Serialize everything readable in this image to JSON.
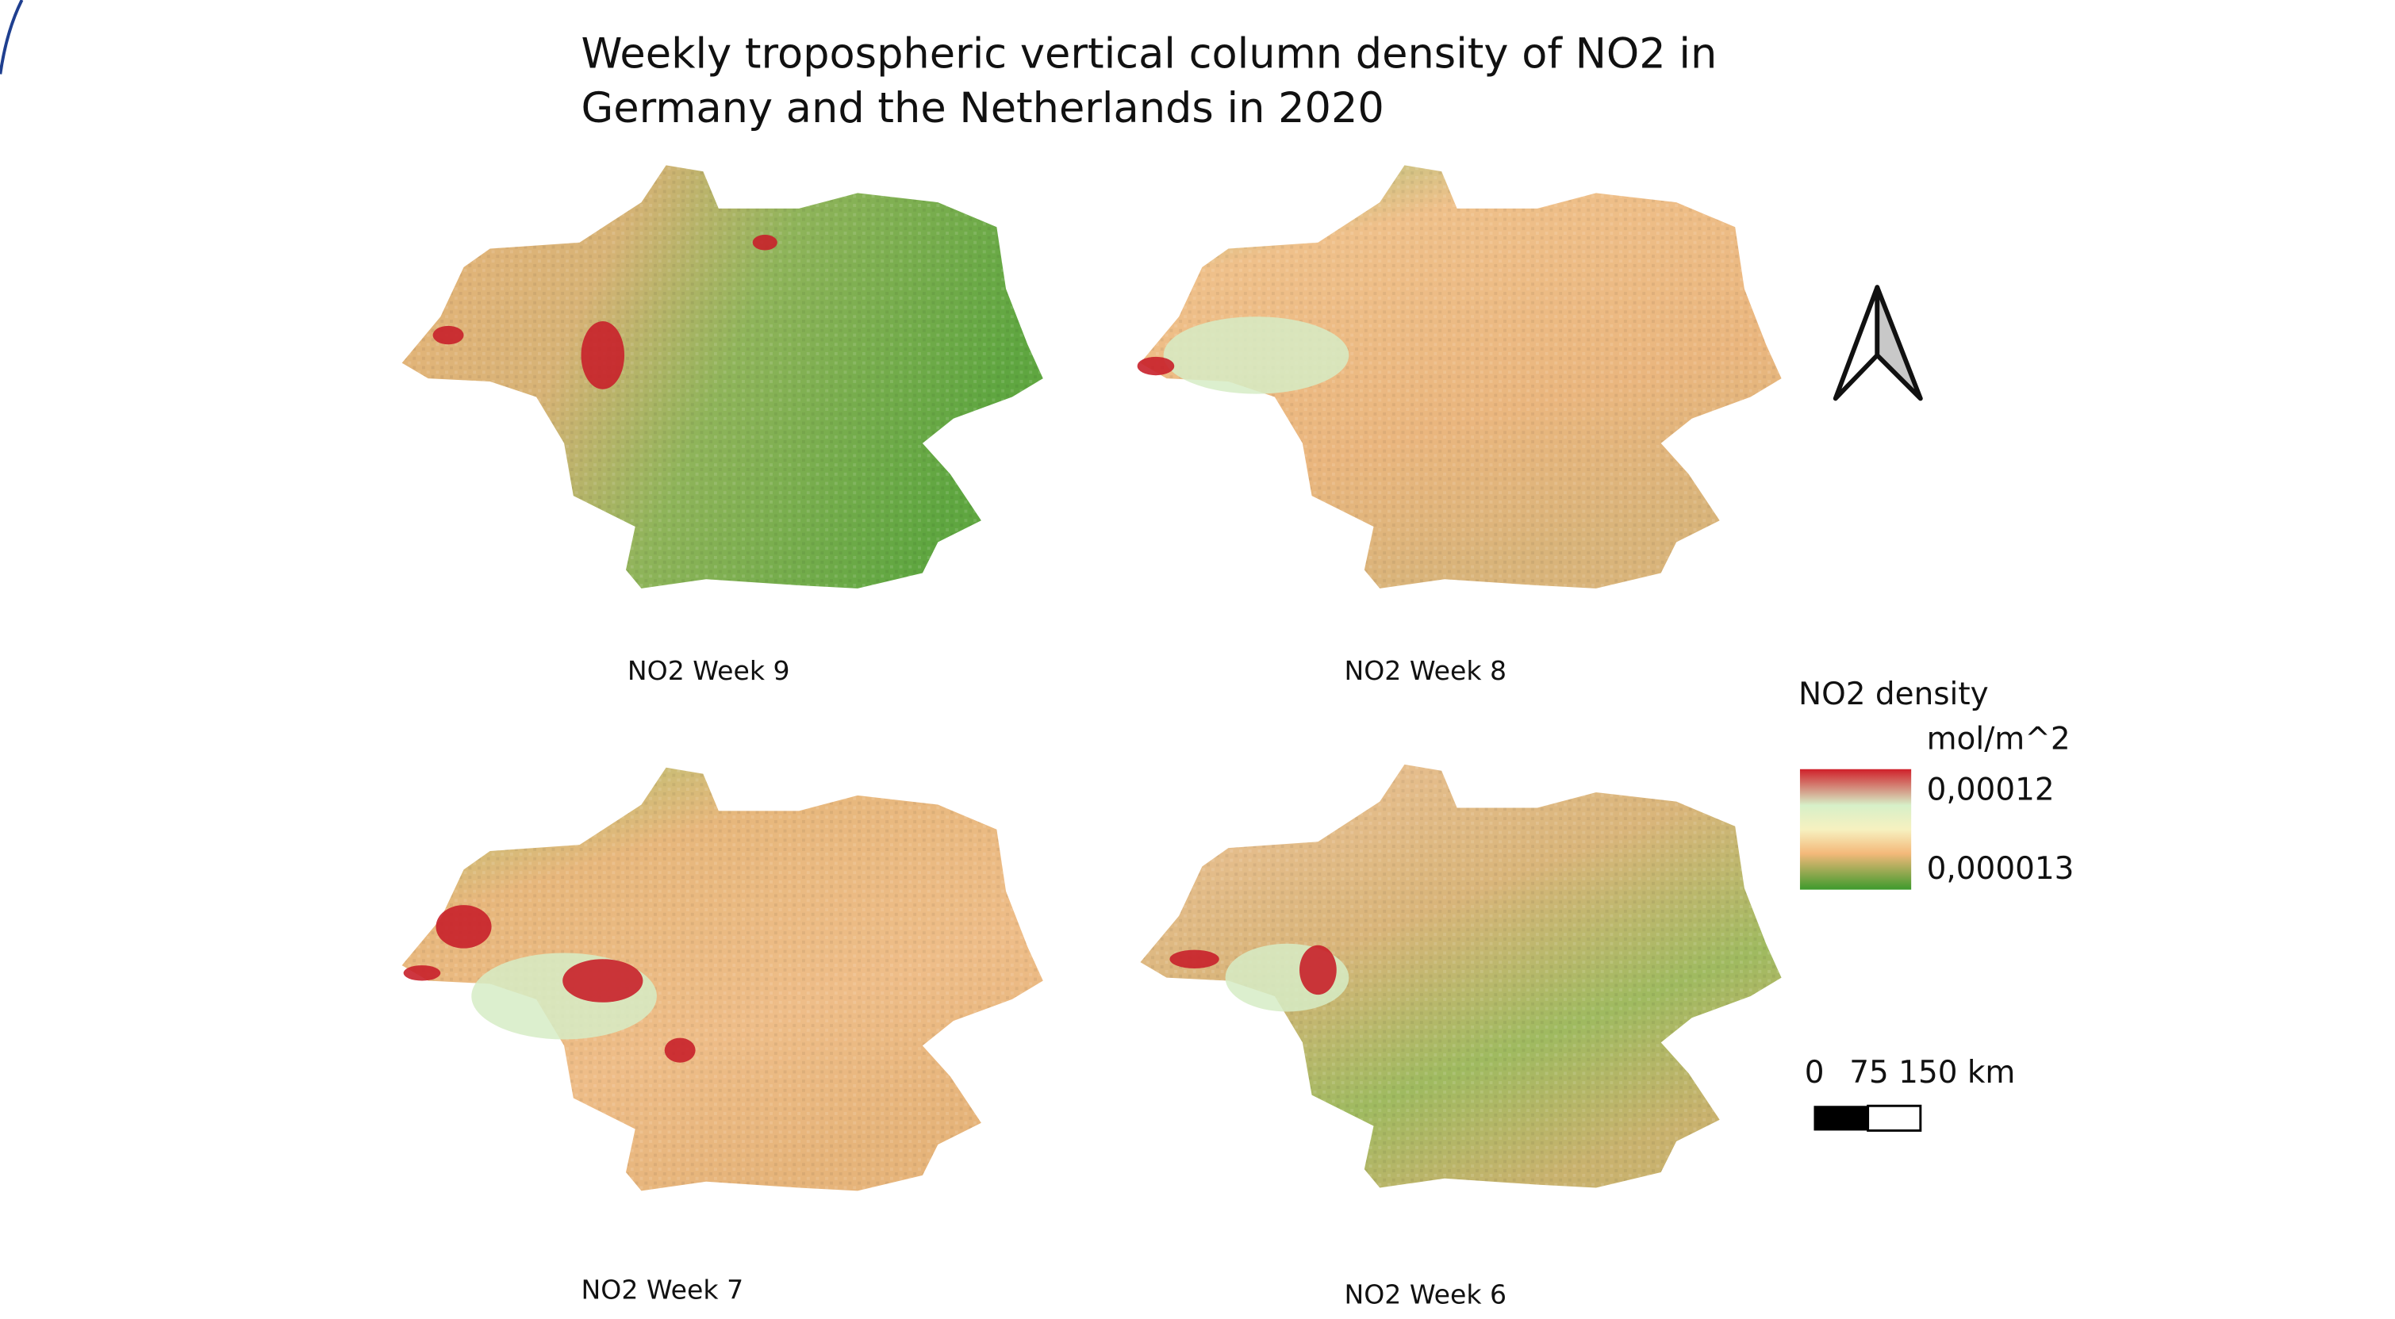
{
  "title": [
    "Weekly tropospheric vertical column density of NO2 in",
    "Germany and the Netherlands in 2020"
  ],
  "maps": [
    {
      "label": "NO2 Week 9"
    },
    {
      "label": "NO2 Week 8"
    },
    {
      "label": "NO2 Week 7"
    },
    {
      "label": "NO2 Week 6"
    }
  ],
  "legend": {
    "title": "NO2 density",
    "unit": "mol/m^2",
    "max_label": "0,00012",
    "min_label": "0,000013"
  },
  "scale_bar": {
    "labels": [
      "0",
      "75 150 km"
    ]
  }
}
